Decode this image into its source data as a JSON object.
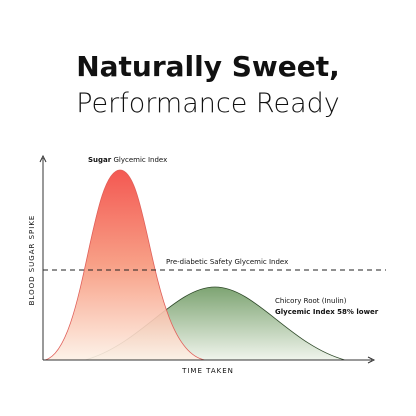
{
  "header": {
    "title_bold": "Naturally Sweet,",
    "title_light": "Performance Ready"
  },
  "graphic": {
    "y_axis_label": "BLOOD SUGAR SPIKE",
    "x_axis_label": "TIME TAKEN",
    "sugar_label_bold": "Sugar",
    "sugar_label": "Glycemic Index",
    "threshold_label": "Pre-diabetic Safety Glycemic Index",
    "chicory_label": "Chicory Root (Inulin)",
    "chicory_note": "Glycemic Index 58% lower"
  }
}
